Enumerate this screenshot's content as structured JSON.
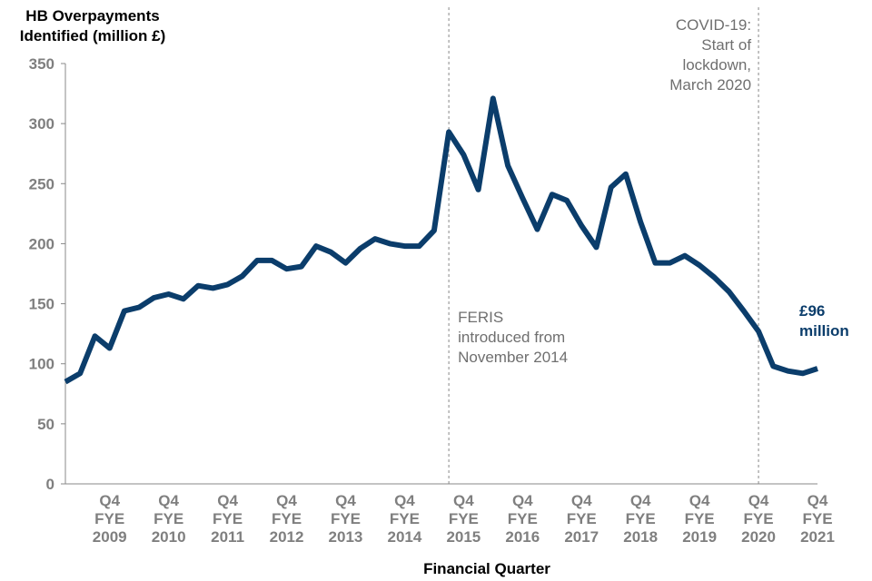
{
  "chart_data": {
    "type": "line",
    "y_label_lines": [
      "HB Overpayments",
      "Identified (million £)"
    ],
    "x_label": "Financial Quarter",
    "categories": [
      null,
      null,
      null,
      "Q4 FYE 2009",
      null,
      null,
      null,
      "Q4 FYE 2010",
      null,
      null,
      null,
      "Q4 FYE 2011",
      null,
      null,
      null,
      "Q4 FYE 2012",
      null,
      null,
      null,
      "Q4 FYE 2013",
      null,
      null,
      null,
      "Q4 FYE 2014",
      null,
      null,
      null,
      "Q4 FYE 2015",
      null,
      null,
      null,
      "Q4 FYE 2016",
      null,
      null,
      null,
      "Q4 FYE 2017",
      null,
      null,
      null,
      "Q4 FYE 2018",
      null,
      null,
      null,
      "Q4 FYE 2019",
      null,
      null,
      null,
      "Q4 FYE 2020",
      null,
      null,
      null,
      "Q4 FYE 2021"
    ],
    "values": [
      85,
      92,
      123,
      113,
      144,
      147,
      155,
      158,
      154,
      165,
      163,
      166,
      173,
      186,
      186,
      179,
      181,
      198,
      193,
      184,
      196,
      204,
      200,
      198,
      198,
      211,
      293,
      274,
      245,
      321,
      265,
      238,
      212,
      241,
      236,
      215,
      197,
      247,
      258,
      218,
      184,
      184,
      190,
      182,
      172,
      160,
      144,
      127,
      98,
      94,
      92,
      96
    ],
    "color": "#0b3d6b",
    "ylim": [
      0,
      350
    ],
    "yticks": [
      0,
      50,
      100,
      150,
      200,
      250,
      300,
      350
    ],
    "annotations": [
      {
        "lines": [
          "FERIS",
          "introduced from",
          "November 2014"
        ]
      },
      {
        "lines": [
          "COVID-19:",
          "Start of",
          "lockdown,",
          "March 2020"
        ]
      },
      {
        "lines": [
          "£96",
          "million"
        ]
      }
    ]
  }
}
